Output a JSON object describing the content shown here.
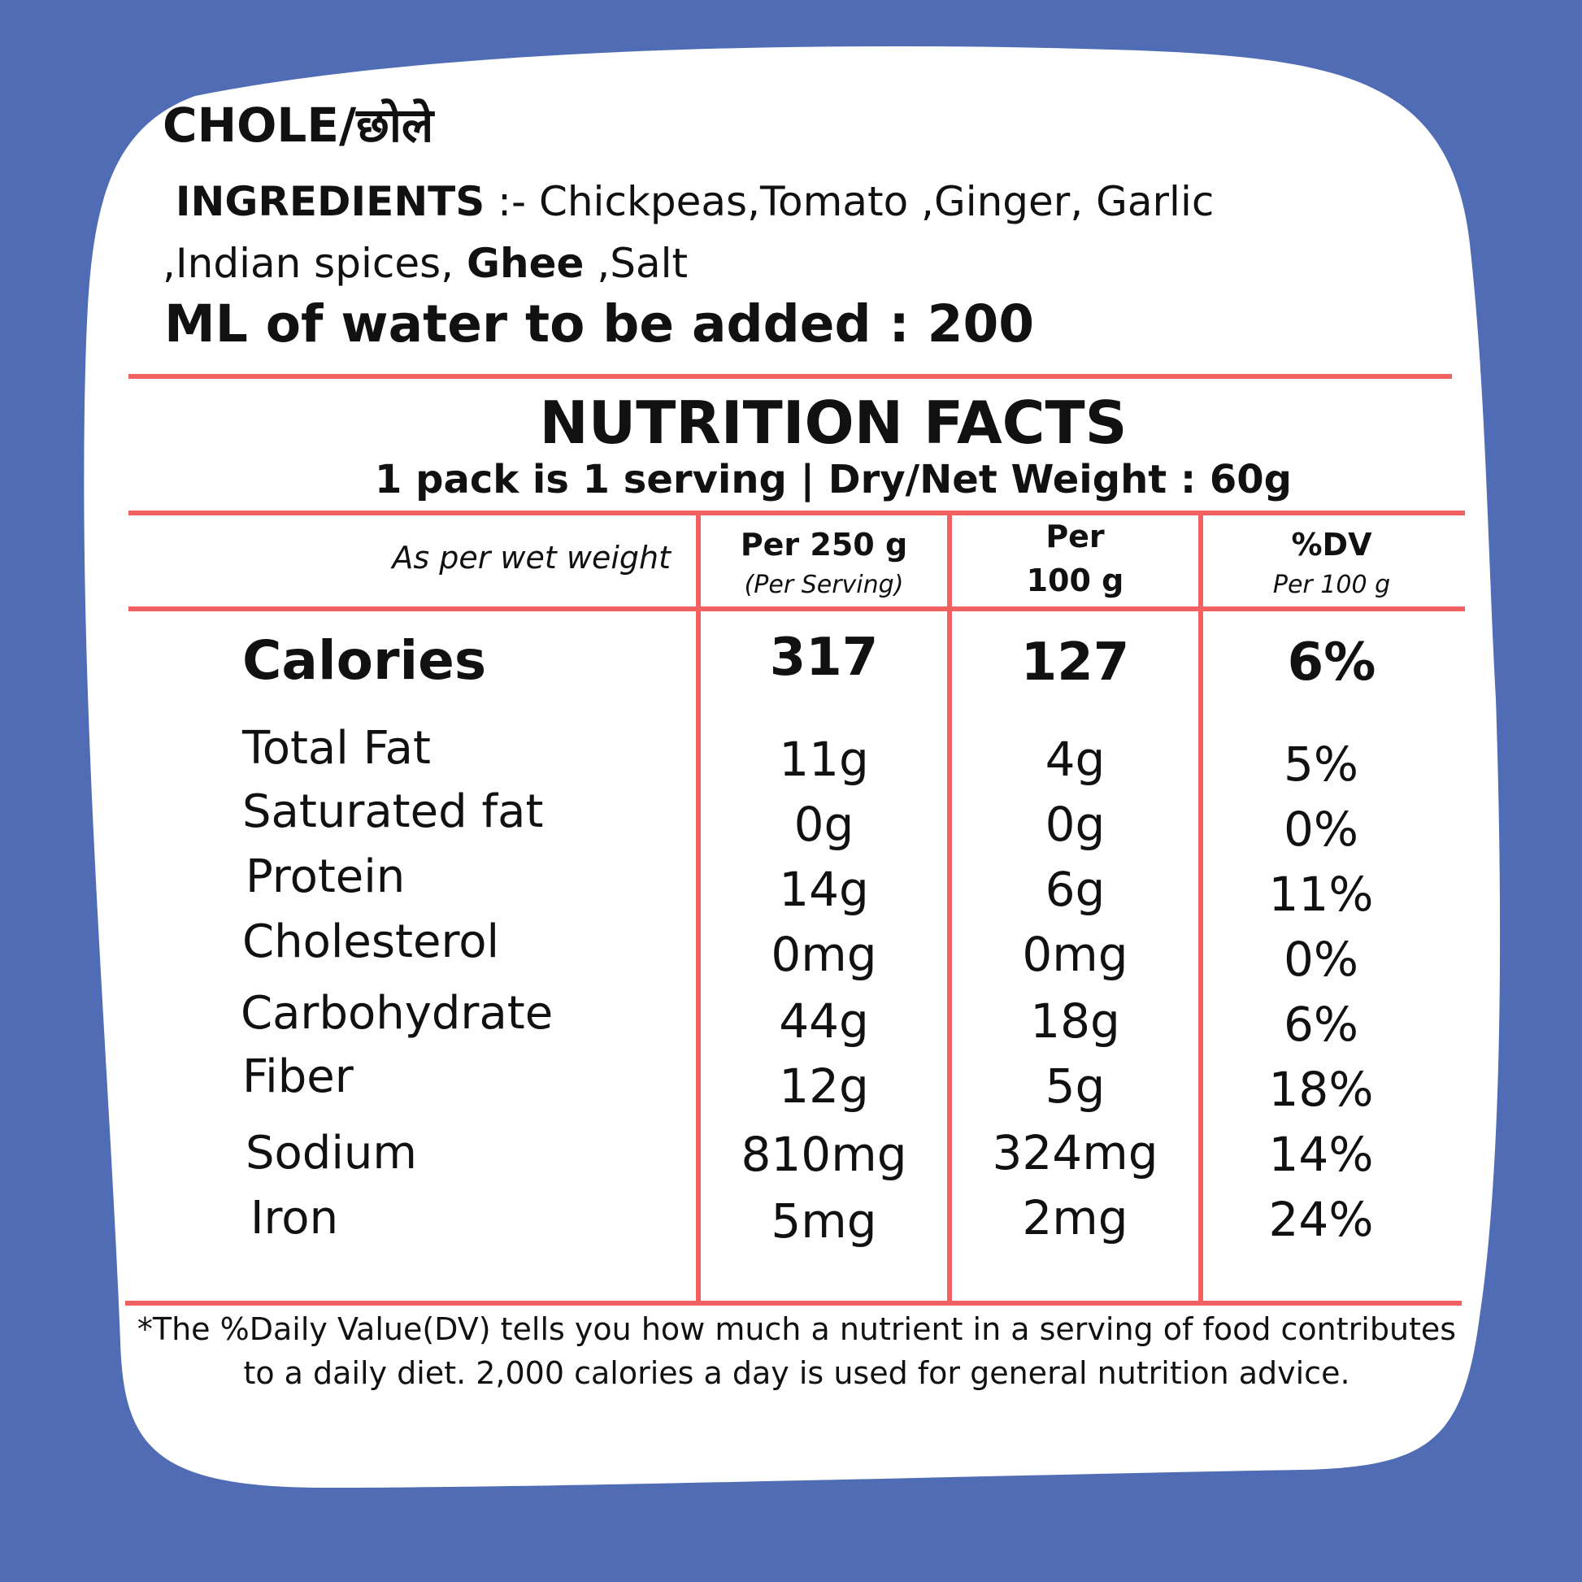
{
  "title": "CHOLE/छोले",
  "ingredients": {
    "label": "INGREDIENTS",
    "text_a": " :- Chickpeas,Tomato ,Ginger, Garlic ,Indian spices, ",
    "bold_item": "Ghee",
    "text_b": " ,Salt"
  },
  "water_note": "ML of water to be added : 200",
  "nutrition": {
    "title": "NUTRITION FACTS",
    "serving_info": "1 pack is 1 serving | Dry/Net  Weight : 60g",
    "basis_note": "As per wet weight",
    "headers": {
      "col1_main": "Per 250 g",
      "col1_sub": "(Per Serving)",
      "col2_line1": "Per",
      "col2_line2": "100 g",
      "col3_main": "%DV",
      "col3_sub": "Per 100 g"
    },
    "calories": {
      "name": "Calories",
      "per_serving": "317",
      "per_100g": "127",
      "dv": "6%"
    },
    "rows": [
      {
        "name": "Total Fat",
        "per_serving": "11g",
        "per_100g": "4g",
        "dv": "5%"
      },
      {
        "name": "Saturated fat",
        "per_serving": "0g",
        "per_100g": "0g",
        "dv": "0%"
      },
      {
        "name": "Protein",
        "per_serving": "14g",
        "per_100g": "6g",
        "dv": "11%"
      },
      {
        "name": "Cholesterol",
        "per_serving": "0mg",
        "per_100g": "0mg",
        "dv": "0%"
      },
      {
        "name": "Carbohydrate",
        "per_serving": "44g",
        "per_100g": "18g",
        "dv": "6%"
      },
      {
        "name": "Fiber",
        "per_serving": "12g",
        "per_100g": "5g",
        "dv": "18%"
      },
      {
        "name": "Sodium",
        "per_serving": "810mg",
        "per_100g": "324mg",
        "dv": "14%"
      },
      {
        "name": "Iron",
        "per_serving": "5mg",
        "per_100g": "2mg",
        "dv": "24%"
      }
    ],
    "footnote": "*The %Daily Value(DV) tells you how much a nutrient in a serving of food contributes to a daily diet. 2,000 calories a day is used for general nutrition advice."
  },
  "colors": {
    "background": "#4f6cb4",
    "card": "#ffffff",
    "rule": "#f26161"
  }
}
